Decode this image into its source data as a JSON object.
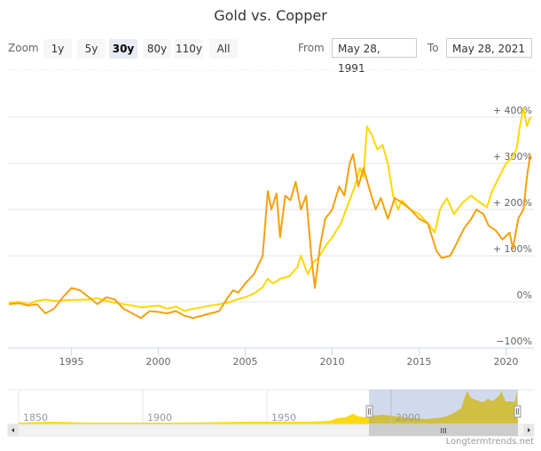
{
  "title": "Gold vs. Copper",
  "range_selector": {
    "zoom_label": "Zoom",
    "buttons": [
      {
        "label": "1y",
        "active": false
      },
      {
        "label": "5y",
        "active": false
      },
      {
        "label": "30y",
        "active": true
      },
      {
        "label": "80y",
        "active": false
      },
      {
        "label": "110y",
        "active": false
      },
      {
        "label": "All",
        "active": false
      }
    ],
    "from_label": "From",
    "from_value": "May 28, 1991",
    "to_label": "To",
    "to_value": "May 28, 2021"
  },
  "colors": {
    "gold": "#FFD700",
    "copper": "#F5A00F",
    "grid": "#e6e6e6",
    "navigator_mask": "#ccd6eb",
    "navigator_fill": "#FFD700"
  },
  "navigator": {
    "labels": [
      "1850",
      "1900",
      "1950",
      "2000"
    ],
    "scrollbar_grip": "III"
  },
  "credit": "Longtermtrends.net",
  "chart_data": {
    "type": "line",
    "title": "Gold vs. Copper",
    "xlabel": "",
    "ylabel": "",
    "x_ticks": [
      "1995",
      "2000",
      "2005",
      "2010",
      "2015",
      "2020"
    ],
    "y_ticks": [
      "−100%",
      "0%",
      "+ 100%",
      "+ 200%",
      "+ 300%",
      "+ 400%"
    ],
    "xlim": [
      1991.4,
      2021.4
    ],
    "ylim": [
      -100,
      500
    ],
    "grid": true,
    "legend": "none",
    "series": [
      {
        "name": "Gold",
        "color": "#FFD700",
        "x": [
          1991.4,
          1992,
          1992.5,
          1993,
          1993.5,
          1994,
          1994.5,
          1995,
          1996,
          1996.5,
          1997,
          1997.5,
          1998,
          1998.5,
          1999,
          1999.5,
          2000,
          2000.5,
          2001,
          2001.5,
          2002,
          2002.5,
          2003,
          2003.5,
          2004,
          2004.5,
          2005,
          2005.5,
          2006,
          2006.3,
          2006.6,
          2007,
          2007.5,
          2008,
          2008.2,
          2008.6,
          2008.9,
          2009.2,
          2009.6,
          2010,
          2010.5,
          2011,
          2011.3,
          2011.6,
          2011.8,
          2012,
          2012.3,
          2012.6,
          2012.9,
          2013.2,
          2013.5,
          2013.8,
          2014,
          2014.5,
          2015,
          2015.5,
          2015.9,
          2016.2,
          2016.6,
          2017,
          2017.5,
          2018,
          2018.5,
          2018.9,
          2019.2,
          2019.6,
          2020,
          2020.3,
          2020.6,
          2020.8,
          2021,
          2021.2,
          2021.4
        ],
        "values": [
          -2,
          0,
          -5,
          2,
          5,
          2,
          3,
          4,
          5,
          8,
          2,
          -2,
          -5,
          -8,
          -12,
          -10,
          -8,
          -15,
          -10,
          -20,
          -15,
          -12,
          -8,
          -5,
          -2,
          5,
          10,
          18,
          32,
          50,
          40,
          50,
          55,
          75,
          100,
          60,
          85,
          95,
          120,
          140,
          170,
          220,
          250,
          290,
          270,
          380,
          360,
          330,
          340,
          300,
          230,
          200,
          220,
          200,
          190,
          170,
          150,
          200,
          225,
          190,
          215,
          230,
          215,
          205,
          240,
          270,
          300,
          310,
          330,
          380,
          420,
          380,
          400
        ]
      },
      {
        "name": "Copper",
        "color": "#F5A00F",
        "x": [
          1991.4,
          1992,
          1992.5,
          1993,
          1993.5,
          1994,
          1994.5,
          1995,
          1995.5,
          1996,
          1996.5,
          1997,
          1997.5,
          1998,
          1998.5,
          1999,
          1999.5,
          2000,
          2000.5,
          2001,
          2001.5,
          2002,
          2002.5,
          2003,
          2003.5,
          2004,
          2004.3,
          2004.6,
          2005,
          2005.5,
          2006,
          2006.3,
          2006.5,
          2006.8,
          2007,
          2007.3,
          2007.6,
          2007.9,
          2008.2,
          2008.5,
          2008.8,
          2009,
          2009.3,
          2009.6,
          2010,
          2010.4,
          2010.7,
          2011,
          2011.2,
          2011.5,
          2011.8,
          2012.1,
          2012.5,
          2012.8,
          2013.2,
          2013.6,
          2014,
          2014.5,
          2015,
          2015.5,
          2016,
          2016.3,
          2016.8,
          2017.2,
          2017.6,
          2018,
          2018.3,
          2018.7,
          2019,
          2019.4,
          2019.8,
          2020.2,
          2020.4,
          2020.7,
          2021,
          2021.2,
          2021.4
        ],
        "values": [
          -5,
          -3,
          -8,
          -5,
          -25,
          -15,
          10,
          30,
          25,
          10,
          -5,
          10,
          5,
          -15,
          -25,
          -35,
          -20,
          -22,
          -25,
          -20,
          -30,
          -35,
          -30,
          -25,
          -20,
          10,
          25,
          20,
          40,
          60,
          100,
          240,
          200,
          235,
          140,
          230,
          220,
          260,
          200,
          230,
          100,
          30,
          120,
          180,
          200,
          250,
          230,
          300,
          320,
          250,
          290,
          250,
          200,
          225,
          180,
          225,
          215,
          200,
          180,
          170,
          110,
          95,
          100,
          130,
          160,
          180,
          200,
          190,
          165,
          155,
          135,
          150,
          115,
          180,
          200,
          270,
          320
        ]
      }
    ]
  }
}
